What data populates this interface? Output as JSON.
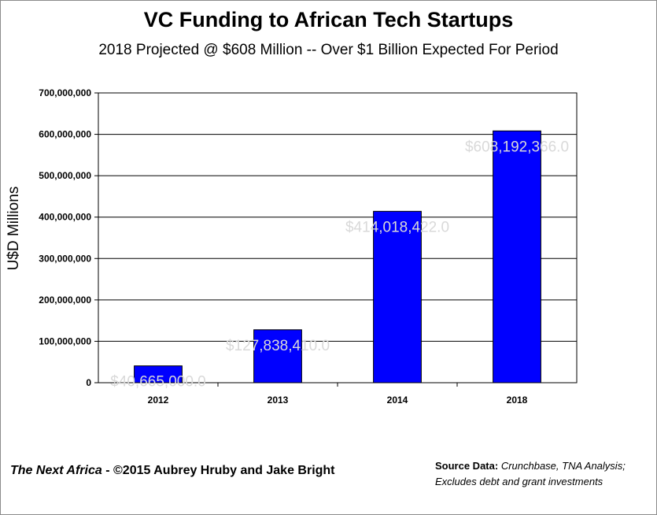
{
  "chart_data": {
    "type": "bar",
    "title": "VC Funding to African Tech Startups",
    "subtitle": "2018 Projected @ $608 Million  -- Over $1 Billion Expected For Period",
    "ylabel": "U$D Millions",
    "xlabel": "",
    "categories": [
      "2012",
      "2013",
      "2014",
      "2018"
    ],
    "values": [
      40665000,
      127838410,
      414018422,
      608192366
    ],
    "data_labels": [
      "$40,665,000.0",
      "$127,838,410.0",
      "$414,018,422.0",
      "$608,192,366.0"
    ],
    "ylim": [
      0,
      700000000
    ],
    "yticks": [
      0,
      100000000,
      200000000,
      300000000,
      400000000,
      500000000,
      600000000,
      700000000
    ],
    "ytick_labels": [
      "0",
      "100,000,000",
      "200,000,000",
      "300,000,000",
      "400,000,000",
      "500,000,000",
      "600,000,000",
      "700,000,000"
    ],
    "grid": true,
    "bar_color": "#0000ff",
    "label_color": "#d9d9d9"
  },
  "footer": {
    "credit_publication": "The Next Africa",
    "credit_rest": " - ©2015 Aubrey Hruby and Jake Bright",
    "source_label": "Source Data:",
    "source_line1": " Crunchbase, TNA Analysis;",
    "source_line2": "Excludes debt and grant  investments"
  }
}
